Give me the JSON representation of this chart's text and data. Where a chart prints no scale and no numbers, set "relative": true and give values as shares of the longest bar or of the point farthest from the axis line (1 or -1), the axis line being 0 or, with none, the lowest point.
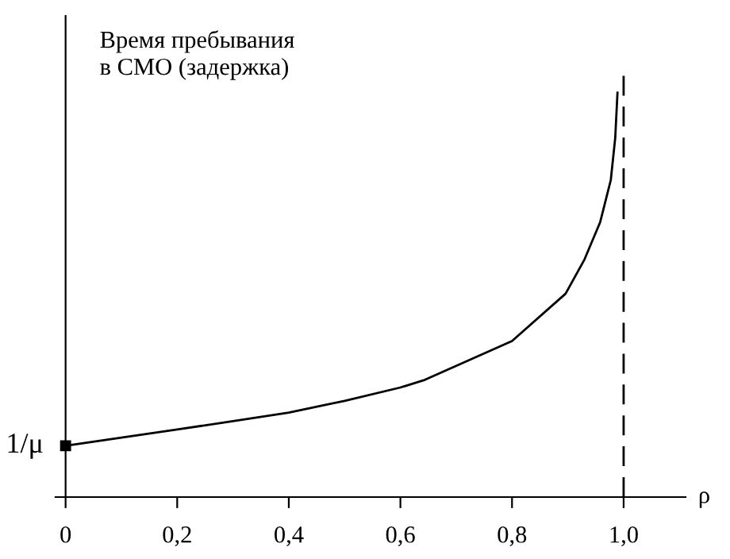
{
  "chart_data": {
    "type": "line",
    "relative": true,
    "ylabel": "Время пребывания\nв СМО (задержка)",
    "xlabel": "ρ",
    "x": [
      0,
      0.1,
      0.2,
      0.3,
      0.4,
      0.5,
      0.6,
      0.644,
      0.8,
      0.896,
      0.93,
      0.958,
      0.977,
      0.985,
      0.989
    ],
    "series": [
      {
        "color": "#000000",
        "values": [
          0.127,
          0.147,
          0.167,
          0.188,
          0.209,
          0.238,
          0.271,
          0.29,
          0.386,
          0.503,
          0.588,
          0.68,
          0.784,
          0.889,
          1
        ]
      }
    ],
    "xlim": [
      -0.018,
      1.111
    ],
    "xticks": [
      0,
      {
        "value": 0.2,
        "label": "0,2"
      },
      {
        "value": 0.4,
        "label": "0,4"
      },
      {
        "value": 0.6,
        "label": "0,6"
      },
      {
        "value": 0.8,
        "label": "0,8"
      },
      {
        "value": 1.0,
        "label": "1,0"
      }
    ],
    "ref_lines": [
      {
        "axis": "x",
        "value": 1.0,
        "color": "#000000",
        "line_style": "dashed"
      }
    ],
    "annotations": [
      {
        "text": "1/μ",
        "x": 0,
        "y": 0.127
      }
    ],
    "grid": false,
    "legend": false
  }
}
